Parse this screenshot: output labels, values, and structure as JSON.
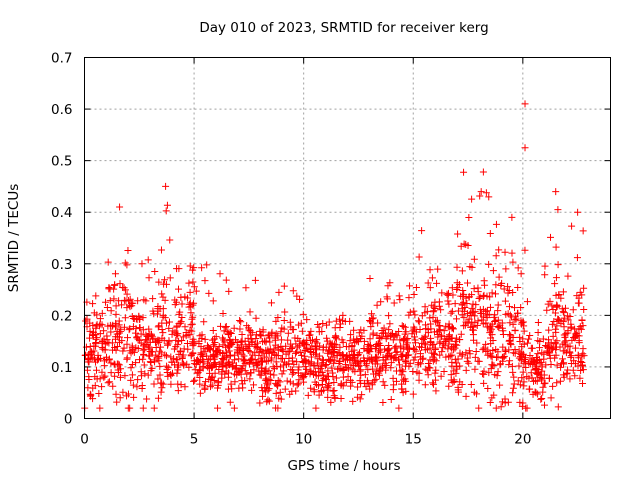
{
  "chart_data": {
    "type": "scatter",
    "title": "Day 010 of 2023, SRMTID for receiver kerg",
    "xlabel": "GPS time / hours",
    "ylabel": "SRMTID / TECUs",
    "xlim": [
      0,
      24
    ],
    "ylim": [
      0,
      0.7
    ],
    "xticks": [
      0,
      5,
      10,
      15,
      20
    ],
    "yticks": [
      0,
      0.1,
      0.2,
      0.3,
      0.4,
      0.5,
      0.6,
      0.7
    ],
    "xtick_labels": [
      "0",
      "5",
      "10",
      "15",
      "20"
    ],
    "ytick_labels": [
      "0",
      "0.1",
      "0.2",
      "0.3",
      "0.4",
      "0.5",
      "0.6",
      "0.7"
    ],
    "grid": true,
    "marker": "+",
    "series_color": "#ff0000",
    "approximation_note": "~2000 points; envelope of values per time window",
    "envelope": [
      {
        "x": [
          0.0,
          1.0
        ],
        "median": 0.13,
        "spread": 0.05,
        "max": 0.31
      },
      {
        "x": [
          1.0,
          2.0
        ],
        "median": 0.15,
        "spread": 0.06,
        "max": 0.41
      },
      {
        "x": [
          2.0,
          3.5
        ],
        "median": 0.14,
        "spread": 0.05,
        "max": 0.31
      },
      {
        "x": [
          3.5,
          4.0
        ],
        "median": 0.17,
        "spread": 0.07,
        "max": 0.45
      },
      {
        "x": [
          4.0,
          5.0
        ],
        "median": 0.16,
        "spread": 0.05,
        "max": 0.3
      },
      {
        "x": [
          5.0,
          8.0
        ],
        "median": 0.12,
        "spread": 0.035,
        "max": 0.3
      },
      {
        "x": [
          8.0,
          10.0
        ],
        "median": 0.11,
        "spread": 0.04,
        "max": 0.29
      },
      {
        "x": [
          10.0,
          13.0
        ],
        "median": 0.11,
        "spread": 0.035,
        "max": 0.2
      },
      {
        "x": [
          13.0,
          15.0
        ],
        "median": 0.13,
        "spread": 0.04,
        "max": 0.28
      },
      {
        "x": [
          15.0,
          17.0
        ],
        "median": 0.15,
        "spread": 0.05,
        "max": 0.37
      },
      {
        "x": [
          17.0,
          18.5
        ],
        "median": 0.18,
        "spread": 0.07,
        "max": 0.48
      },
      {
        "x": [
          18.5,
          19.8
        ],
        "median": 0.16,
        "spread": 0.06,
        "max": 0.38
      },
      {
        "x": [
          19.8,
          20.3
        ],
        "median": 0.12,
        "spread": 0.06,
        "max": 0.61
      },
      {
        "x": [
          20.3,
          21.0
        ],
        "median": 0.1,
        "spread": 0.04,
        "max": 0.3
      },
      {
        "x": [
          21.0,
          21.7
        ],
        "median": 0.17,
        "spread": 0.06,
        "max": 0.44
      },
      {
        "x": [
          21.7,
          22.8
        ],
        "median": 0.16,
        "spread": 0.05,
        "max": 0.4
      }
    ],
    "notable_points": [
      {
        "x": 20.1,
        "y": 0.61
      },
      {
        "x": 20.1,
        "y": 0.525
      },
      {
        "x": 18.2,
        "y": 0.478
      },
      {
        "x": 3.7,
        "y": 0.45
      },
      {
        "x": 18.1,
        "y": 0.44
      },
      {
        "x": 21.5,
        "y": 0.44
      },
      {
        "x": 1.6,
        "y": 0.41
      },
      {
        "x": 21.6,
        "y": 0.405
      },
      {
        "x": 22.5,
        "y": 0.4
      },
      {
        "x": 19.5,
        "y": 0.39
      },
      {
        "x": 0.7,
        "y": 0.02
      },
      {
        "x": 8.0,
        "y": 0.03
      },
      {
        "x": 20.0,
        "y": 0.03
      }
    ]
  }
}
